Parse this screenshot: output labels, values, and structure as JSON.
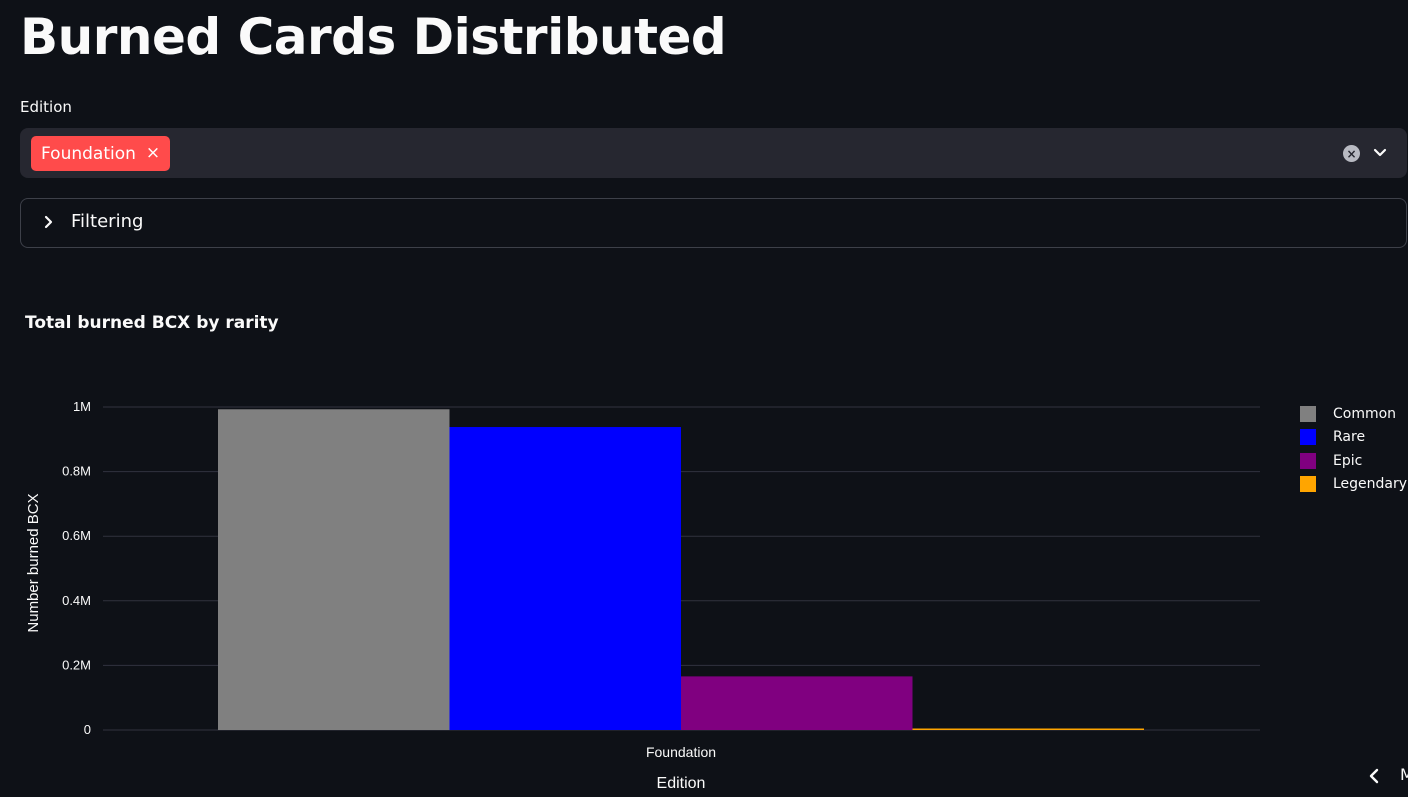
{
  "page": {
    "title": "Burned Cards Distributed"
  },
  "filters": {
    "edition_label": "Edition",
    "selected_chip": "Foundation",
    "chip_remove_symbol": "×",
    "clear_symbol": "×",
    "expander_label": "Filtering"
  },
  "chart": {
    "title": "Total burned BCX by rarity"
  },
  "chart_data": {
    "type": "bar",
    "title": "Total burned BCX by rarity",
    "xlabel": "Edition",
    "ylabel": "Number burned BCX",
    "categories": [
      "Foundation"
    ],
    "series": [
      {
        "name": "Common",
        "values": [
          993000
        ],
        "color": "#808080"
      },
      {
        "name": "Rare",
        "values": [
          938000
        ],
        "color": "#0000ff"
      },
      {
        "name": "Epic",
        "values": [
          166000
        ],
        "color": "#800080"
      },
      {
        "name": "Legendary",
        "values": [
          4000
        ],
        "color": "#ffa500"
      }
    ],
    "yticks": [
      {
        "value": 0,
        "label": "0"
      },
      {
        "value": 200000,
        "label": "0.2M"
      },
      {
        "value": 400000,
        "label": "0.4M"
      },
      {
        "value": 600000,
        "label": "0.6M"
      },
      {
        "value": 800000,
        "label": "0.8M"
      },
      {
        "value": 1000000,
        "label": "1M"
      }
    ],
    "ylim": [
      0,
      1000000
    ],
    "grid": true,
    "legend_position": "right"
  },
  "colors": {
    "background": "#0e1117",
    "accent": "#ff4b4b",
    "gridline": "#31333f"
  },
  "icons": {
    "dropdown": "chevron-down-icon",
    "expander": "chevron-right-icon",
    "scroll": "chevron-left-icon"
  },
  "misc": {
    "cut_label": "M"
  }
}
